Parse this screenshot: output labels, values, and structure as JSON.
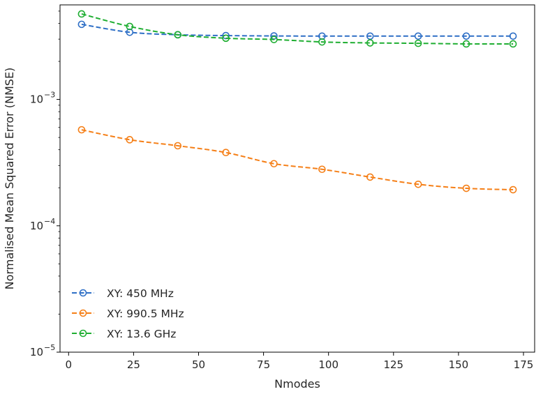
{
  "chart_data": {
    "type": "line",
    "title": "",
    "xlabel": "Nmodes",
    "ylabel": "Normalised Mean Squared Error (NMSE)",
    "xlim": [
      -3.3,
      179.3
    ],
    "ylim": [
      1e-05,
      0.0056
    ],
    "yscale": "log",
    "grid": false,
    "legend_position": "lower-left",
    "x_ticks": [
      0,
      25,
      50,
      75,
      100,
      125,
      150,
      175
    ],
    "x_tick_labels": [
      "0",
      "25",
      "50",
      "75",
      "100",
      "125",
      "150",
      "175"
    ],
    "y_ticks": [
      1e-05,
      0.0001,
      0.001
    ],
    "y_tick_labels": [
      {
        "base": "10",
        "exp": "−5"
      },
      {
        "base": "10",
        "exp": "−4"
      },
      {
        "base": "10",
        "exp": "−3"
      }
    ],
    "x": [
      5,
      23.5,
      42,
      60.5,
      79,
      97.5,
      116,
      134.5,
      153,
      171
    ],
    "series": [
      {
        "name": "XY: 450 MHz",
        "color": "#2e6fc6",
        "values": [
          0.00393,
          0.0034,
          0.00325,
          0.0032,
          0.00318,
          0.00317,
          0.00317,
          0.00317,
          0.00317,
          0.00317
        ]
      },
      {
        "name": "XY: 990.5 MHz",
        "color": "#f57f17",
        "values": [
          0.000575,
          0.00048,
          0.00043,
          0.00038,
          0.00031,
          0.00028,
          0.000243,
          0.000213,
          0.000198,
          0.000193
        ]
      },
      {
        "name": "XY: 13.6 GHz",
        "color": "#1fae32",
        "values": [
          0.00475,
          0.00378,
          0.00325,
          0.00305,
          0.00298,
          0.00285,
          0.0028,
          0.00278,
          0.00275,
          0.00275
        ]
      }
    ]
  }
}
